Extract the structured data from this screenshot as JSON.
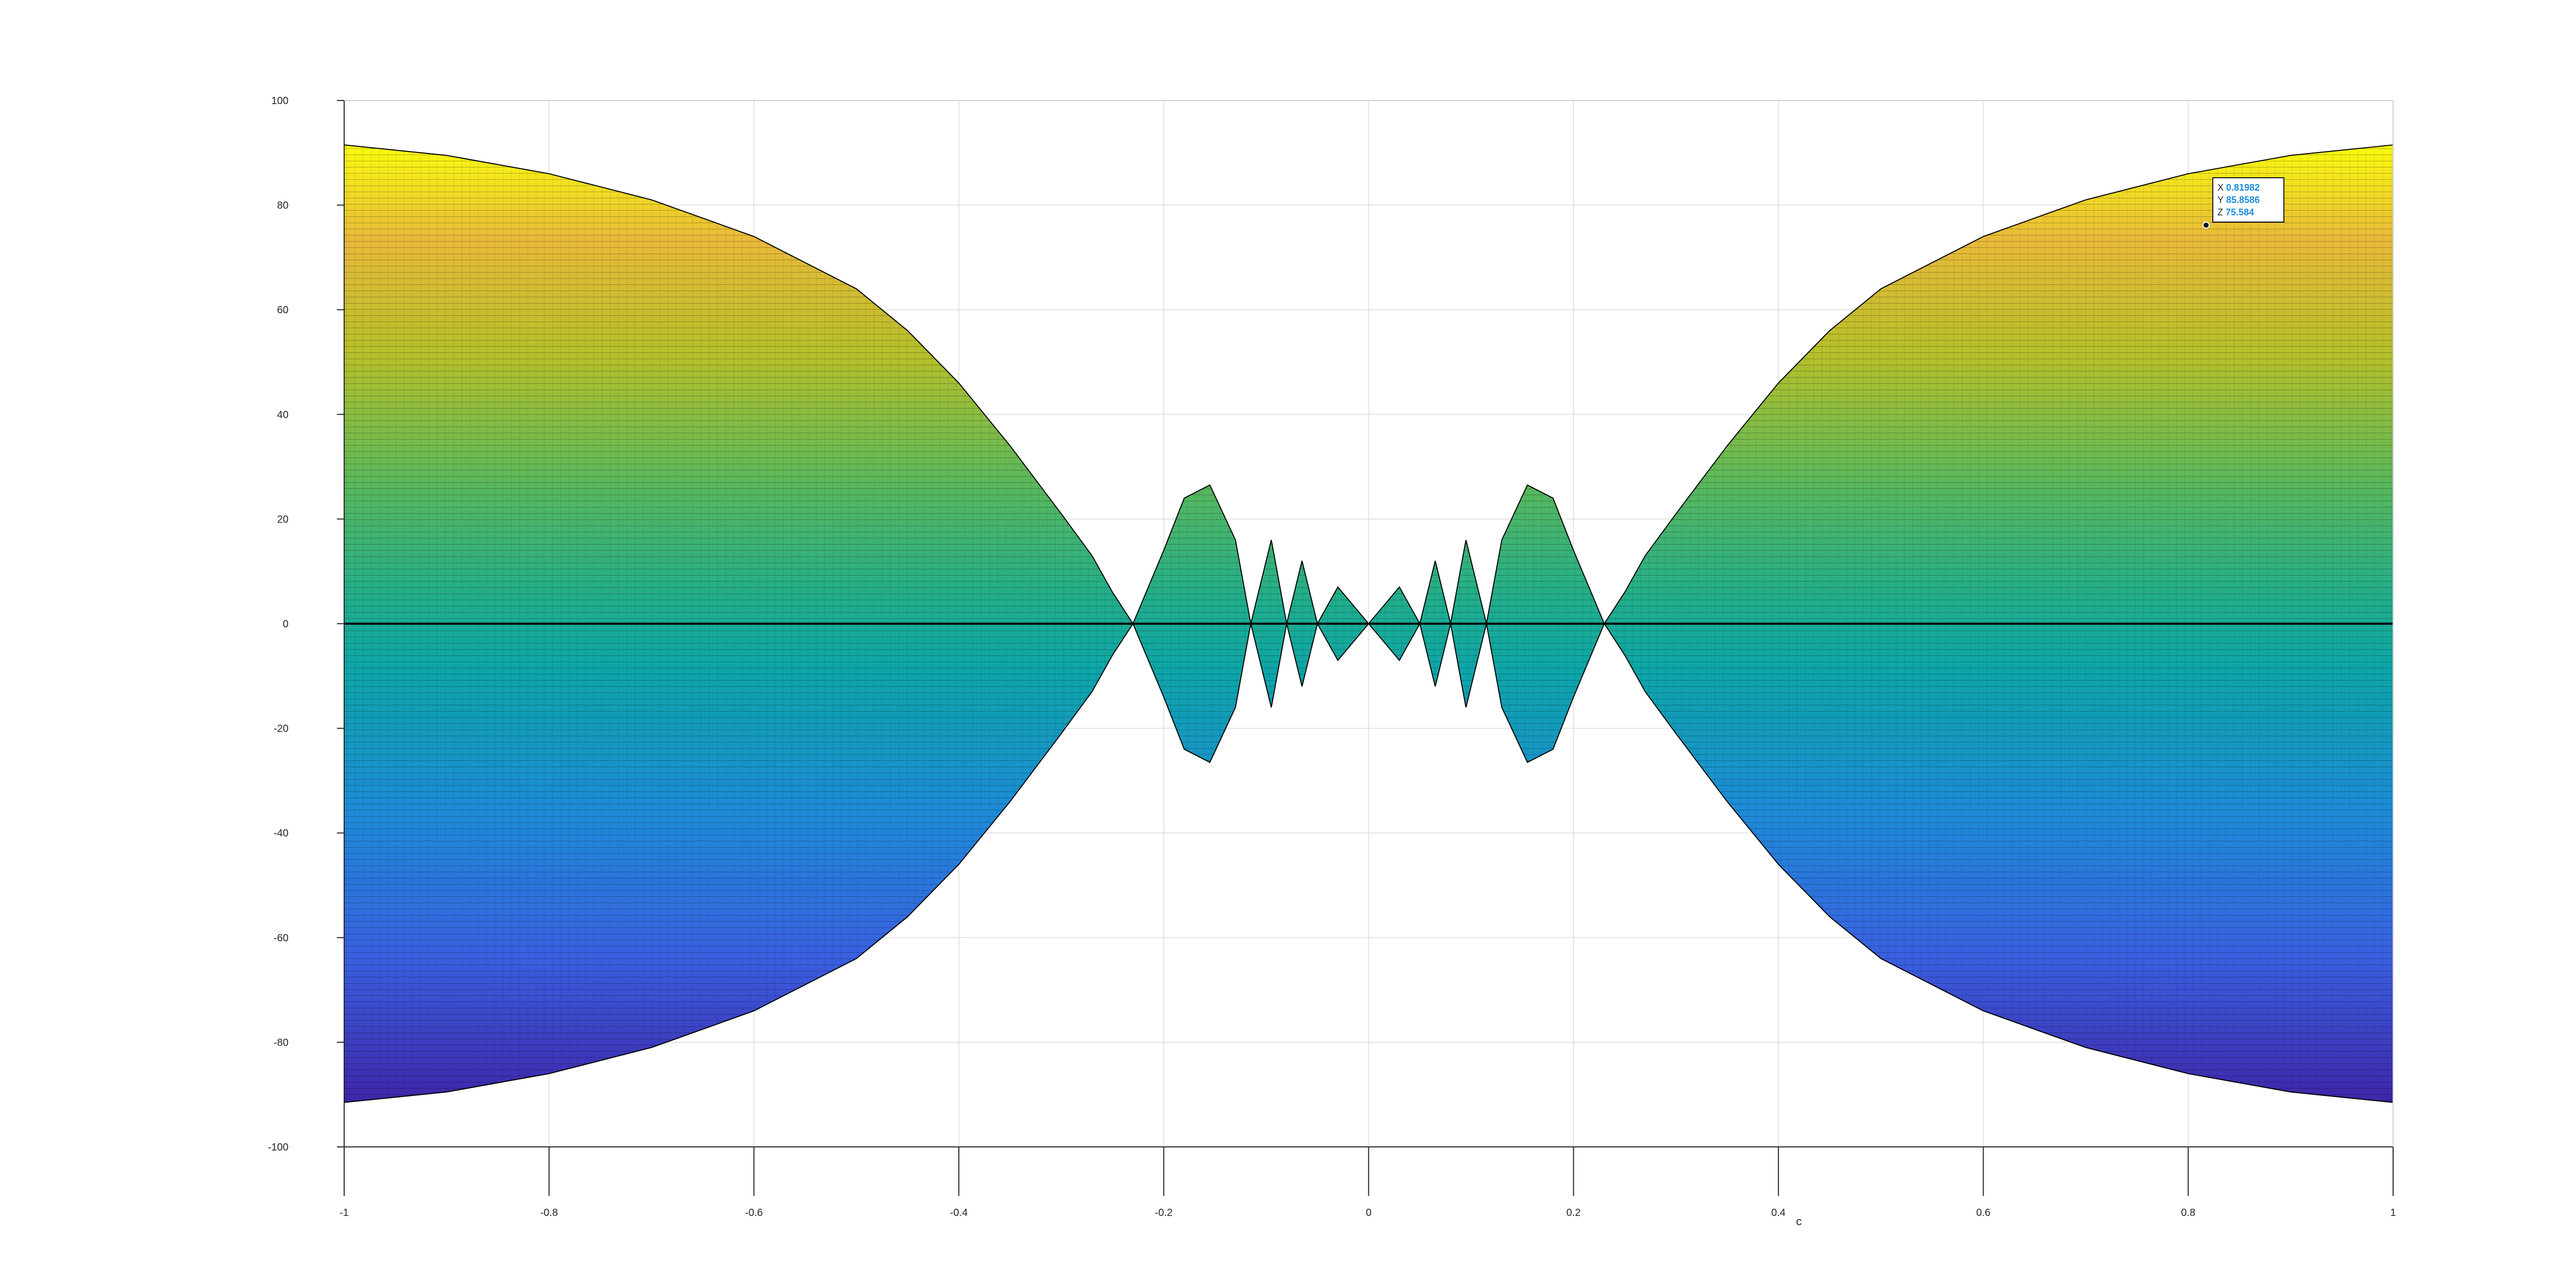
{
  "chart_data": {
    "type": "area",
    "title": "",
    "xlabel": "c",
    "ylabel": "",
    "xlim": [
      -1,
      1
    ],
    "ylim": [
      -100,
      100
    ],
    "grid": true,
    "colormap": "parula",
    "x_ticks": [
      -1,
      -0.8,
      -0.6,
      -0.4,
      -0.2,
      0,
      0.2,
      0.4,
      0.6,
      0.8,
      1
    ],
    "x_tick_labels": [
      "-1",
      "-0.8",
      "-0.6",
      "-0.4",
      "-0.2",
      "0",
      "0.2",
      "0.4",
      "0.6",
      "0.8",
      "1"
    ],
    "y_ticks": [
      100,
      80,
      60,
      40,
      20,
      0,
      -20,
      -40,
      -60,
      -80,
      -100
    ],
    "y_tick_labels": [
      "100",
      "80",
      "60",
      "40",
      "20",
      "0",
      "-20",
      "-40",
      "-60",
      "-80",
      "-100"
    ],
    "envelope": {
      "x": [
        -1,
        -0.9,
        -0.8,
        -0.7,
        -0.6,
        -0.5,
        -0.45,
        -0.4,
        -0.35,
        -0.3,
        -0.27,
        -0.25,
        -0.23,
        -0.2,
        -0.18,
        -0.155,
        -0.13,
        -0.115,
        -0.095,
        -0.08,
        -0.065,
        -0.05,
        -0.03,
        0,
        0.03,
        0.05,
        0.065,
        0.08,
        0.095,
        0.115,
        0.13,
        0.155,
        0.18,
        0.2,
        0.23,
        0.25,
        0.27,
        0.3,
        0.35,
        0.4,
        0.45,
        0.5,
        0.6,
        0.7,
        0.8,
        0.9,
        1
      ],
      "y_max": [
        91.5,
        89.5,
        86,
        81,
        74,
        64,
        56,
        46,
        34,
        21,
        13,
        6,
        0,
        14,
        24,
        26.5,
        16,
        0,
        16,
        0,
        12,
        0,
        7,
        0,
        7,
        0,
        12,
        0,
        16,
        0,
        16,
        26.5,
        24,
        14,
        0,
        6,
        13,
        21,
        34,
        46,
        56,
        64,
        74,
        81,
        86,
        89.5,
        91.5
      ]
    },
    "datatip": {
      "x_label": "X",
      "x_value": "0.81982",
      "y_label": "Y",
      "y_value": "85.8586",
      "z_label": "Z",
      "z_value": "75.584"
    }
  }
}
